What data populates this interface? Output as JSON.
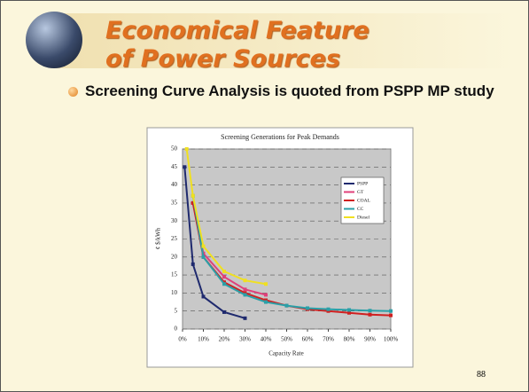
{
  "slide": {
    "title_lines": [
      "Economical Feature",
      "of Power Sources"
    ],
    "bullet": "Screening Curve Analysis is quoted from PSPP MP study",
    "page_number": "88"
  },
  "chart_data": {
    "type": "line",
    "title": "Screening Generations for Peak Demands",
    "x_label": "Capacity Rate",
    "y_label": "¢ $/kWh",
    "xlim": [
      0,
      100
    ],
    "xticks": [
      {
        "value": 0,
        "label": "0%"
      },
      {
        "value": 10,
        "label": "10%"
      },
      {
        "value": 20,
        "label": "20%"
      },
      {
        "value": 30,
        "label": "30%"
      },
      {
        "value": 40,
        "label": "40%"
      },
      {
        "value": 50,
        "label": "50%"
      },
      {
        "value": 60,
        "label": "60%"
      },
      {
        "value": 70,
        "label": "70%"
      },
      {
        "value": 80,
        "label": "80%"
      },
      {
        "value": 90,
        "label": "90%"
      },
      {
        "value": 100,
        "label": "100%"
      }
    ],
    "ylim": [
      0,
      50
    ],
    "yticks": [
      0,
      5,
      10,
      15,
      20,
      25,
      30,
      35,
      40,
      45,
      50
    ],
    "grid": true,
    "legend": "upper right",
    "series": [
      {
        "name": "PSPP",
        "color": "#1f2a6e",
        "x": [
          1,
          5,
          10,
          20,
          30
        ],
        "values": [
          45,
          18,
          9,
          4.7,
          3
        ]
      },
      {
        "name": "GT",
        "color": "#e0407a",
        "x": [
          5,
          10,
          20,
          30,
          40
        ],
        "values": [
          35,
          21,
          14.5,
          11,
          9.5
        ]
      },
      {
        "name": "COAL",
        "color": "#d02020",
        "x": [
          5,
          10,
          20,
          30,
          40,
          50,
          60,
          70,
          80,
          90,
          100
        ],
        "values": [
          35,
          20,
          13,
          10,
          8,
          6.5,
          5.5,
          5,
          4.5,
          4,
          3.8
        ]
      },
      {
        "name": "CC",
        "color": "#2aa0a8",
        "x": [
          5,
          10,
          20,
          30,
          40,
          50,
          60,
          70,
          80,
          90,
          100
        ],
        "values": [
          37,
          20,
          12.5,
          9.5,
          7.5,
          6.5,
          5.8,
          5.5,
          5.3,
          5.1,
          5
        ]
      },
      {
        "name": "Diesel",
        "color": "#f0e020",
        "x": [
          2,
          5,
          10,
          20,
          30,
          40
        ],
        "values": [
          50,
          37,
          23,
          16,
          13.5,
          12.5
        ]
      }
    ]
  }
}
